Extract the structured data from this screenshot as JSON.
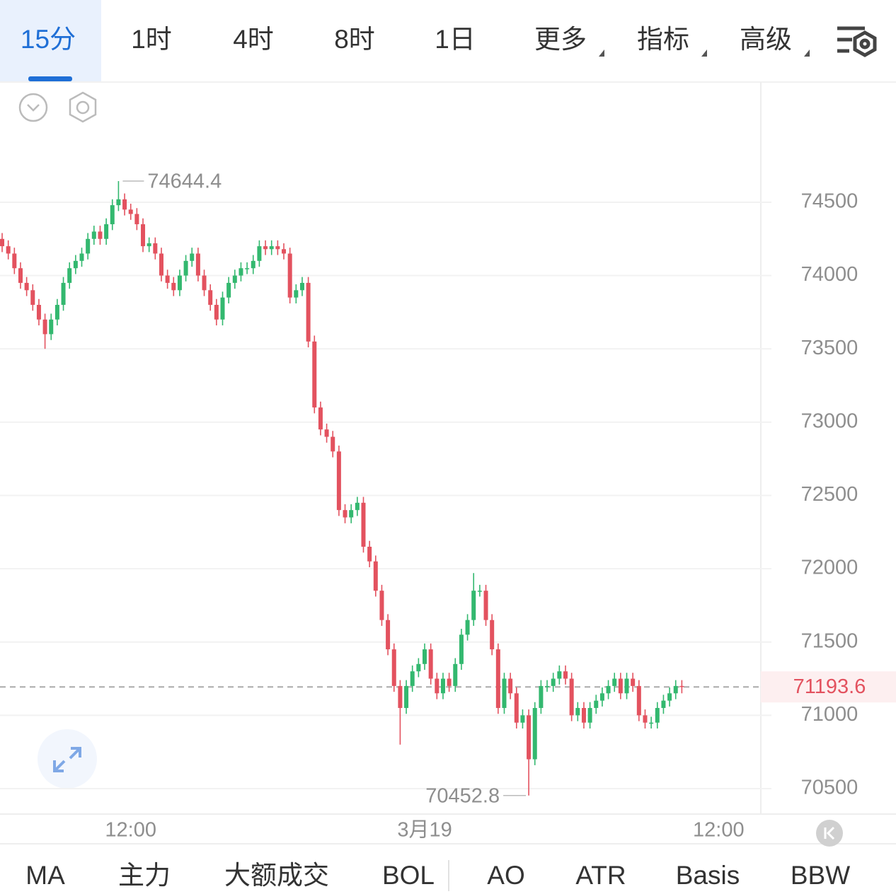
{
  "tabs": [
    "15分",
    "1时",
    "4时",
    "8时",
    "1日",
    "更多",
    "指标",
    "高级"
  ],
  "indicators": [
    "MA",
    "主力",
    "大额成交",
    "BOL",
    "AO",
    "ATR",
    "Basis",
    "BBW"
  ],
  "chart_data": {
    "type": "candlestick",
    "up_color": "#33b86f",
    "down_color": "#e3525f",
    "grid": true,
    "xlim": [
      -0.35,
      123.9
    ],
    "xticks": [
      {
        "value": 21,
        "label": "12:00"
      },
      {
        "value": 69,
        "label": "3月19"
      },
      {
        "value": 117,
        "label": "12:00"
      }
    ],
    "ylim": [
      70331,
      75320
    ],
    "yticks": [
      70500,
      71000,
      71500,
      72000,
      72500,
      73000,
      73500,
      74000,
      74500
    ],
    "open": [
      74250,
      74200,
      74150,
      74050,
      73950,
      73900,
      73800,
      73700,
      73600,
      73700,
      73800,
      73950,
      74050,
      74100,
      74150,
      74250,
      74300,
      74250,
      74350,
      74480,
      74520,
      74450,
      74420,
      74350,
      74200,
      74220,
      74150,
      74000,
      73950,
      73900,
      74000,
      74100,
      74150,
      74000,
      73900,
      73800,
      73700,
      73850,
      73950,
      74000,
      74050,
      74050,
      74100,
      74200,
      74180,
      74200,
      74180,
      74150,
      73850,
      73900,
      73950,
      73550,
      73100,
      72950,
      72900,
      72800,
      72400,
      72350,
      72400,
      72450,
      72150,
      72050,
      71850,
      71650,
      71450,
      71200,
      71050,
      71200,
      71300,
      71350,
      71450,
      71250,
      71150,
      71250,
      71200,
      71350,
      71550,
      71650,
      71850,
      71850,
      71650,
      71450,
      71050,
      71250,
      71150,
      70950,
      71000,
      70700,
      71050,
      71200,
      71200,
      71250,
      71300,
      71250,
      71000,
      71050,
      70950,
      71050,
      71100,
      71150,
      71200,
      71250,
      71150,
      71250,
      71200,
      71000,
      70950,
      70950,
      71050,
      71100,
      71150,
      71200
    ],
    "high": [
      74290,
      74240,
      74190,
      74090,
      73990,
      73940,
      73840,
      73740,
      73740,
      73840,
      73990,
      74090,
      74140,
      74190,
      74290,
      74340,
      74340,
      74390,
      74520,
      74644.4,
      74560,
      74490,
      74460,
      74390,
      74260,
      74260,
      74190,
      74040,
      73990,
      74040,
      74140,
      74190,
      74190,
      74040,
      73940,
      73840,
      73890,
      73990,
      74040,
      74090,
      74090,
      74140,
      74240,
      74240,
      74240,
      74240,
      74220,
      74190,
      73940,
      73990,
      73990,
      73590,
      73140,
      72990,
      72940,
      72840,
      72440,
      72440,
      72490,
      72490,
      72190,
      72090,
      71890,
      71690,
      71490,
      71240,
      71240,
      71340,
      71390,
      71490,
      71490,
      71290,
      71290,
      71290,
      71390,
      71590,
      71690,
      71970,
      71890,
      71890,
      71690,
      71490,
      71290,
      71290,
      71190,
      71040,
      71040,
      71090,
      71240,
      71240,
      71290,
      71340,
      71340,
      71290,
      71090,
      71090,
      71090,
      71140,
      71190,
      71240,
      71290,
      71290,
      71290,
      71290,
      71240,
      71040,
      70990,
      71090,
      71140,
      71190,
      71240,
      71240
    ],
    "low": [
      74160,
      74110,
      74010,
      73910,
      73860,
      73760,
      73660,
      73500,
      73560,
      73660,
      73760,
      73910,
      74010,
      74060,
      74110,
      74210,
      74210,
      74210,
      74310,
      74440,
      74410,
      74380,
      74310,
      74160,
      74160,
      74110,
      73960,
      73910,
      73860,
      73860,
      73960,
      74060,
      73960,
      73860,
      73760,
      73660,
      73660,
      73810,
      73910,
      73960,
      74010,
      74010,
      74060,
      74140,
      74140,
      74140,
      74110,
      73810,
      73810,
      73860,
      73510,
      73060,
      72910,
      72860,
      72760,
      72360,
      72310,
      72310,
      72360,
      72110,
      72010,
      71810,
      71610,
      71410,
      71160,
      70800,
      71010,
      71160,
      71260,
      71310,
      71210,
      71110,
      71110,
      71160,
      71160,
      71310,
      71510,
      71610,
      71810,
      71610,
      71410,
      71010,
      71010,
      71110,
      70910,
      70910,
      70452.8,
      70660,
      71010,
      71160,
      71160,
      71210,
      71210,
      70960,
      70960,
      70910,
      70910,
      71010,
      71060,
      71110,
      71160,
      71110,
      71110,
      71160,
      70960,
      70910,
      70910,
      70910,
      71010,
      71060,
      71110,
      71150
    ],
    "close": [
      74200,
      74150,
      74050,
      73950,
      73900,
      73800,
      73700,
      73600,
      73700,
      73800,
      73950,
      74050,
      74100,
      74150,
      74250,
      74300,
      74250,
      74350,
      74480,
      74520,
      74450,
      74420,
      74350,
      74200,
      74220,
      74150,
      74000,
      73950,
      73900,
      74000,
      74100,
      74150,
      74000,
      73900,
      73800,
      73700,
      73850,
      73950,
      74000,
      74050,
      74050,
      74100,
      74200,
      74180,
      74200,
      74180,
      74150,
      73850,
      73900,
      73950,
      73550,
      73100,
      72950,
      72900,
      72800,
      72400,
      72350,
      72400,
      72450,
      72150,
      72050,
      71850,
      71650,
      71450,
      71200,
      71050,
      71200,
      71300,
      71350,
      71450,
      71250,
      71150,
      71250,
      71200,
      71350,
      71550,
      71650,
      71850,
      71850,
      71650,
      71450,
      71050,
      71250,
      71150,
      70950,
      71000,
      70700,
      71050,
      71200,
      71200,
      71250,
      71300,
      71250,
      71000,
      71050,
      70950,
      71050,
      71100,
      71150,
      71200,
      71250,
      71150,
      71250,
      71200,
      71000,
      70950,
      70950,
      71050,
      71100,
      71150,
      71200,
      71193.6
    ]
  }
}
